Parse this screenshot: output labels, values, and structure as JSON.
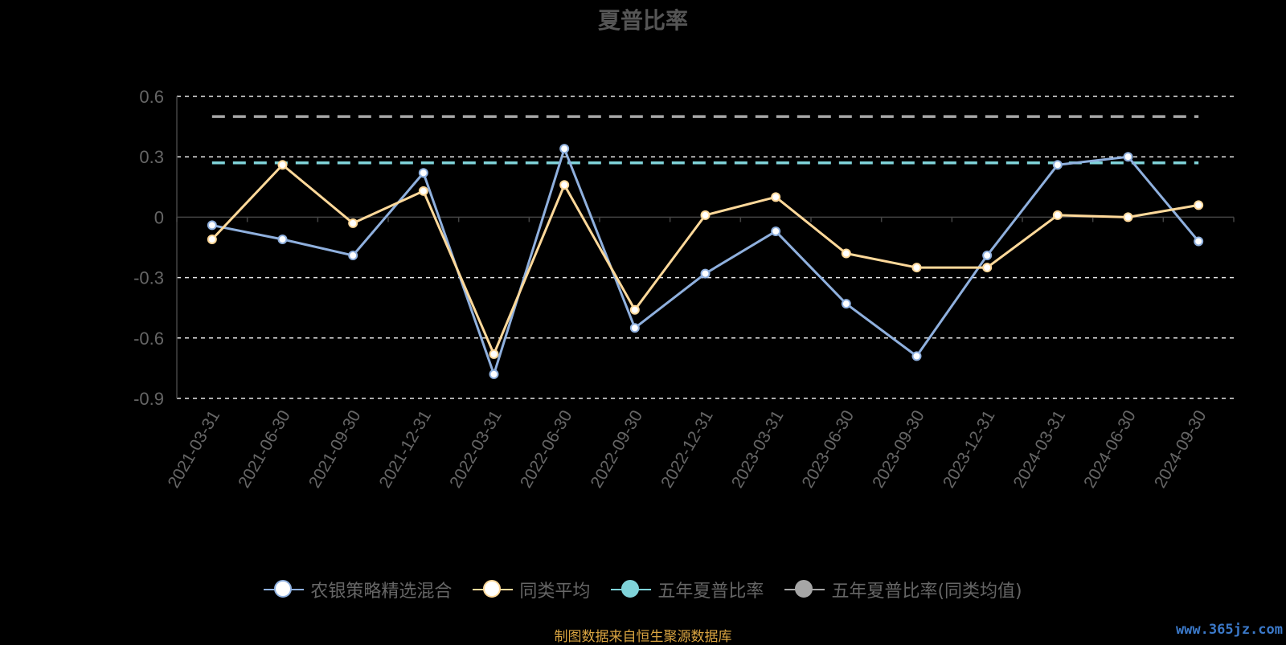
{
  "chart_data": {
    "type": "line",
    "title": "夏普比率",
    "categories": [
      "2021-03-31",
      "2021-06-30",
      "2021-09-30",
      "2021-12-31",
      "2022-03-31",
      "2022-06-30",
      "2022-09-30",
      "2022-12-31",
      "2023-03-31",
      "2023-06-30",
      "2023-09-30",
      "2023-12-31",
      "2024-03-31",
      "2024-06-30",
      "2024-09-30"
    ],
    "series": [
      {
        "name": "农银策略精选混合",
        "color": "#8fb0de",
        "values": [
          -0.04,
          -0.11,
          -0.19,
          0.22,
          -0.78,
          0.34,
          -0.55,
          -0.28,
          -0.07,
          -0.43,
          -0.69,
          -0.19,
          0.26,
          0.3,
          -0.12
        ]
      },
      {
        "name": "同类平均",
        "color": "#ffd99a",
        "values": [
          -0.11,
          0.26,
          -0.03,
          0.13,
          -0.68,
          0.16,
          -0.46,
          0.01,
          0.1,
          -0.18,
          -0.25,
          -0.25,
          0.01,
          0.0,
          0.06
        ]
      }
    ],
    "reference_lines": [
      {
        "name": "五年夏普比率",
        "color": "#7fd3d9",
        "value": 0.27
      },
      {
        "name": "五年夏普比率(同类均值)",
        "color": "#a6a6a6",
        "value": 0.5
      }
    ],
    "yticks": [
      0.6,
      0.3,
      0,
      -0.3,
      -0.6,
      -0.9
    ],
    "ylim": [
      -0.9,
      0.6
    ],
    "grid": true,
    "legend_position": "bottom"
  },
  "legend": [
    {
      "label": "农银策略精选混合",
      "line_color": "#8fb0de",
      "dot_fill": "#ffffff",
      "dot_border": "#8fb0de"
    },
    {
      "label": "同类平均",
      "line_color": "#ffd99a",
      "dot_fill": "#ffffff",
      "dot_border": "#ffd99a"
    },
    {
      "label": "五年夏普比率",
      "line_color": "#7fd3d9",
      "dot_fill": "#7fd3d9",
      "dot_border": "#7fd3d9"
    },
    {
      "label": "五年夏普比率(同类均值)",
      "line_color": "#a6a6a6",
      "dot_fill": "#a6a6a6",
      "dot_border": "#a6a6a6"
    }
  ],
  "source": "制图数据来自恒生聚源数据库",
  "watermark": "www.365jz.com"
}
